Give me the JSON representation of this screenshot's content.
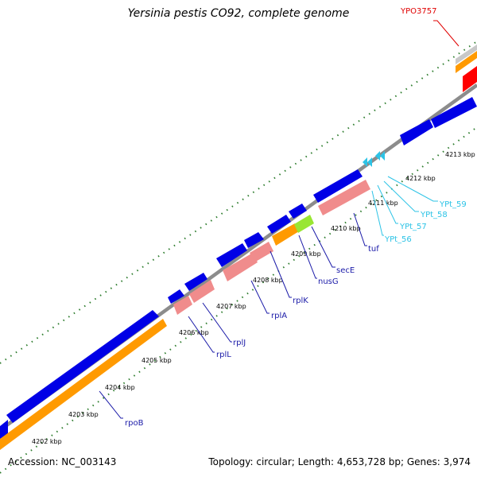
{
  "title": "Yersinia pestis CO92, complete genome",
  "footer": {
    "accession": "Accession: NC_003143",
    "summary": "Topology: circular; Length: 4,653,728 bp; Genes: 3,974"
  },
  "colors": {
    "cds": "#0000e6",
    "rna_pink": "#f08c8c",
    "orange": "#ff9a00",
    "lime": "#99e633",
    "red": "#ff0000",
    "silver": "#c8c8c8",
    "backbone": "#8c8c8c",
    "ticks": "#2e7d2e",
    "label_blue": "#1a1aa8",
    "label_cyan": "#2cc3e6",
    "label_red": "#e00000"
  },
  "kbp_labels": [
    "4202 kbp",
    "4203 kbp",
    "4204 kbp",
    "4205 kbp",
    "4206 kbp",
    "4207 kbp",
    "4208 kbp",
    "4209 kbp",
    "4210 kbp",
    "4211 kbp",
    "4212 kbp",
    "4213 kbp"
  ],
  "gene_labels": [
    "rpoB",
    "rplL",
    "rplJ",
    "rplA",
    "rplK",
    "nusG",
    "secE",
    "tuf",
    "YPt_56",
    "YPt_57",
    "YPt_58",
    "YPt_59",
    "YPO3757"
  ]
}
